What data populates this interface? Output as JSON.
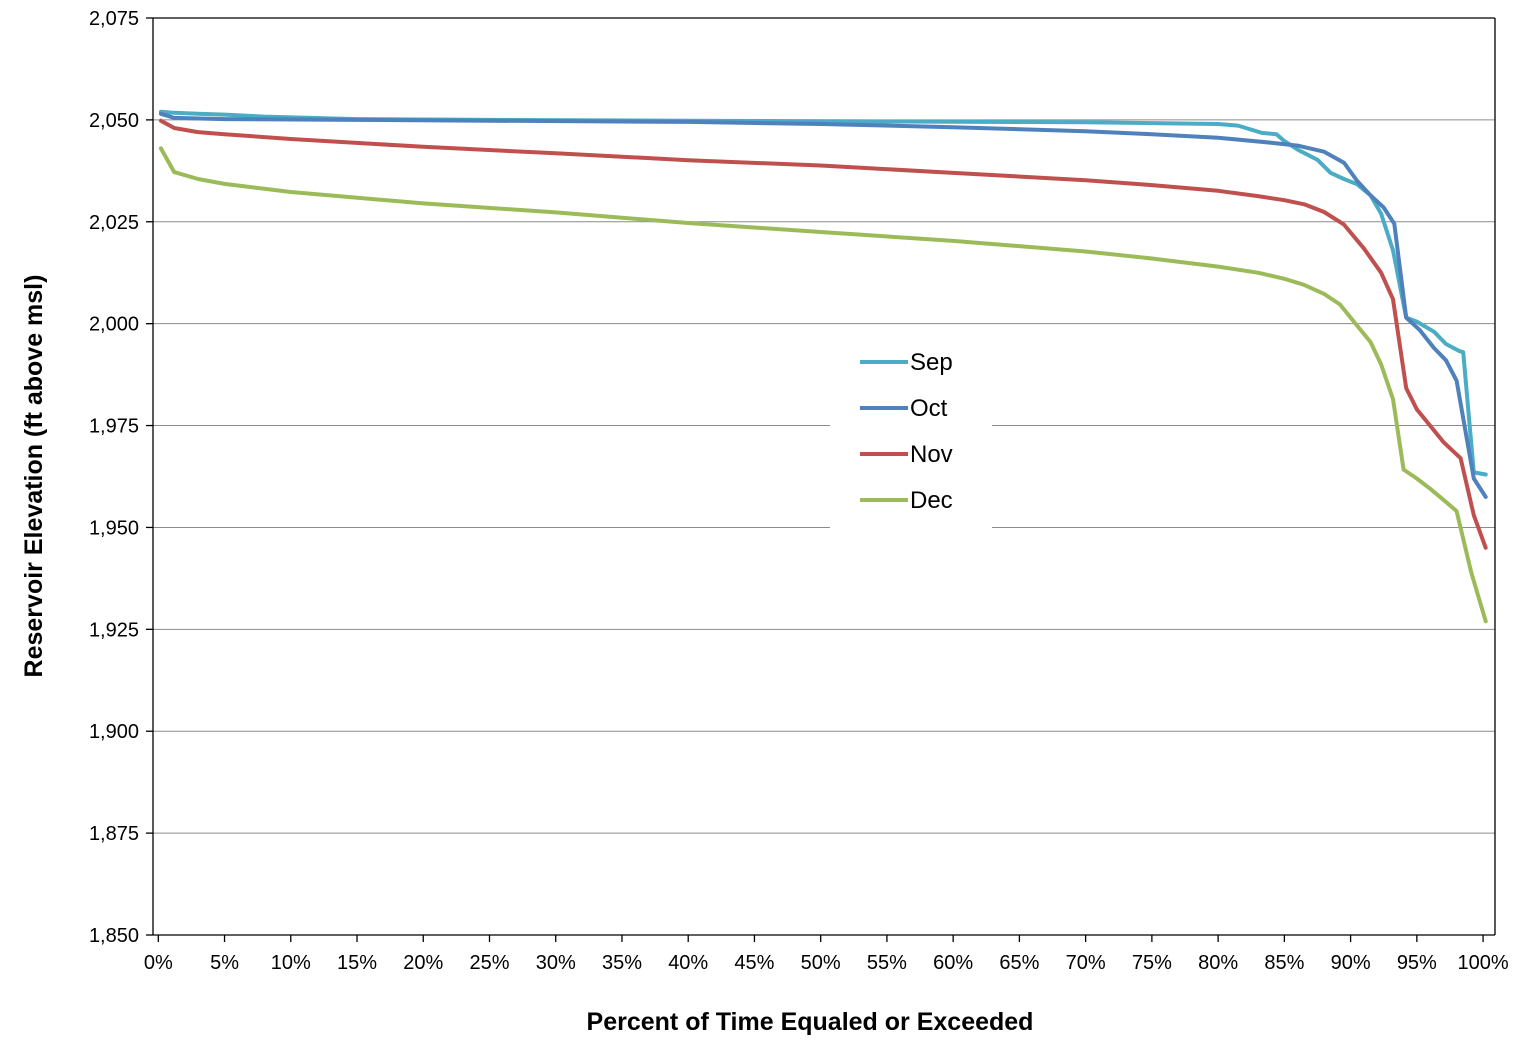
{
  "chart_data": {
    "type": "line",
    "title": "",
    "xlabel": "Percent of Time Equaled or Exceeded",
    "ylabel": "Reservoir Elevation (ft above msl)",
    "xlim": [
      0,
      100
    ],
    "ylim": [
      1850,
      2075
    ],
    "x_ticks": [
      0,
      5,
      10,
      15,
      20,
      25,
      30,
      35,
      40,
      45,
      50,
      55,
      60,
      65,
      70,
      75,
      80,
      85,
      90,
      95,
      100
    ],
    "x_tick_labels": [
      "0%",
      "5%",
      "10%",
      "15%",
      "20%",
      "25%",
      "30%",
      "35%",
      "40%",
      "45%",
      "50%",
      "55%",
      "60%",
      "65%",
      "70%",
      "75%",
      "80%",
      "85%",
      "90%",
      "95%",
      "100%"
    ],
    "y_ticks": [
      1850,
      1875,
      1900,
      1925,
      1950,
      1975,
      2000,
      2025,
      2050,
      2075
    ],
    "y_tick_labels": [
      "1,850",
      "1,875",
      "1,900",
      "1,925",
      "1,950",
      "1,975",
      "2,000",
      "2,025",
      "2,050",
      "2,075"
    ],
    "grid": "horizontal",
    "legend_position": "center",
    "series": [
      {
        "name": "Sep",
        "color": "#4bacc6",
        "points": [
          [
            0.2,
            2052
          ],
          [
            1,
            2051.8
          ],
          [
            3,
            2051.5
          ],
          [
            5,
            2051.3
          ],
          [
            8,
            2050.8
          ],
          [
            15,
            2050.2
          ],
          [
            25,
            2050
          ],
          [
            40,
            2049.8
          ],
          [
            55,
            2049.6
          ],
          [
            70,
            2049.4
          ],
          [
            80,
            2049
          ],
          [
            81.5,
            2048.6
          ],
          [
            83.3,
            2046.8
          ],
          [
            84.4,
            2046.5
          ],
          [
            85,
            2044.8
          ],
          [
            86,
            2042.7
          ],
          [
            87.5,
            2040.2
          ],
          [
            88.5,
            2037
          ],
          [
            89.5,
            2035.5
          ],
          [
            90.5,
            2034.2
          ],
          [
            91.5,
            2031.5
          ],
          [
            92.3,
            2027
          ],
          [
            93.2,
            2018
          ],
          [
            94.2,
            2001.5
          ],
          [
            95,
            2000.5
          ],
          [
            96.3,
            1998
          ],
          [
            97.2,
            1995
          ],
          [
            98.2,
            1993.3
          ],
          [
            98.5,
            1993
          ],
          [
            99.3,
            1963.5
          ],
          [
            100.2,
            1963
          ]
        ]
      },
      {
        "name": "Oct",
        "color": "#4f81bd",
        "points": [
          [
            0.2,
            2051.5
          ],
          [
            1.2,
            2050.5
          ],
          [
            5,
            2050.2
          ],
          [
            15,
            2050
          ],
          [
            25,
            2049.8
          ],
          [
            40,
            2049.5
          ],
          [
            50,
            2049
          ],
          [
            60,
            2048.2
          ],
          [
            70,
            2047.2
          ],
          [
            75,
            2046.5
          ],
          [
            80,
            2045.6
          ],
          [
            84,
            2044.4
          ],
          [
            86,
            2043.7
          ],
          [
            88,
            2042.2
          ],
          [
            89.5,
            2039.5
          ],
          [
            90.5,
            2035
          ],
          [
            91.5,
            2031.5
          ],
          [
            92.5,
            2028.5
          ],
          [
            93.3,
            2024.5
          ],
          [
            94.2,
            2001.5
          ],
          [
            95.2,
            1998.5
          ],
          [
            96.3,
            1994
          ],
          [
            97.2,
            1991
          ],
          [
            98,
            1986
          ],
          [
            99.3,
            1962
          ],
          [
            100.2,
            1957.5
          ]
        ]
      },
      {
        "name": "Nov",
        "color": "#c0504d",
        "points": [
          [
            0.2,
            2049.8
          ],
          [
            1.2,
            2048
          ],
          [
            3,
            2047
          ],
          [
            5,
            2046.5
          ],
          [
            10,
            2045.3
          ],
          [
            20,
            2043.4
          ],
          [
            30,
            2041.8
          ],
          [
            40,
            2040.1
          ],
          [
            50,
            2038.8
          ],
          [
            60,
            2037
          ],
          [
            70,
            2035.2
          ],
          [
            75,
            2034
          ],
          [
            80,
            2032.6
          ],
          [
            83,
            2031.3
          ],
          [
            85,
            2030.3
          ],
          [
            86.5,
            2029.3
          ],
          [
            88,
            2027.4
          ],
          [
            89.5,
            2024.3
          ],
          [
            91,
            2018.5
          ],
          [
            92.3,
            2012.5
          ],
          [
            93.2,
            2006
          ],
          [
            94.2,
            1984.2
          ],
          [
            95,
            1979
          ],
          [
            96,
            1975
          ],
          [
            97,
            1971
          ],
          [
            98.3,
            1967
          ],
          [
            99.3,
            1953
          ],
          [
            100.2,
            1945
          ]
        ]
      },
      {
        "name": "Dec",
        "color": "#9bbb59",
        "points": [
          [
            0.2,
            2043
          ],
          [
            1.2,
            2037.2
          ],
          [
            3,
            2035.5
          ],
          [
            5,
            2034.3
          ],
          [
            10,
            2032.3
          ],
          [
            20,
            2029.5
          ],
          [
            30,
            2027.3
          ],
          [
            40,
            2024.7
          ],
          [
            50,
            2022.5
          ],
          [
            60,
            2020.3
          ],
          [
            70,
            2017.7
          ],
          [
            75,
            2016
          ],
          [
            80,
            2014
          ],
          [
            83,
            2012.5
          ],
          [
            85,
            2011
          ],
          [
            86.5,
            2009.5
          ],
          [
            88,
            2007.3
          ],
          [
            89.2,
            2004.7
          ],
          [
            90.5,
            1999.5
          ],
          [
            91.5,
            1995.5
          ],
          [
            92.3,
            1990
          ],
          [
            93.2,
            1981.5
          ],
          [
            94,
            1964.2
          ],
          [
            95,
            1962
          ],
          [
            96,
            1959.5
          ],
          [
            97,
            1956.8
          ],
          [
            98,
            1954
          ],
          [
            99.1,
            1939
          ],
          [
            100.2,
            1927
          ]
        ]
      }
    ]
  }
}
